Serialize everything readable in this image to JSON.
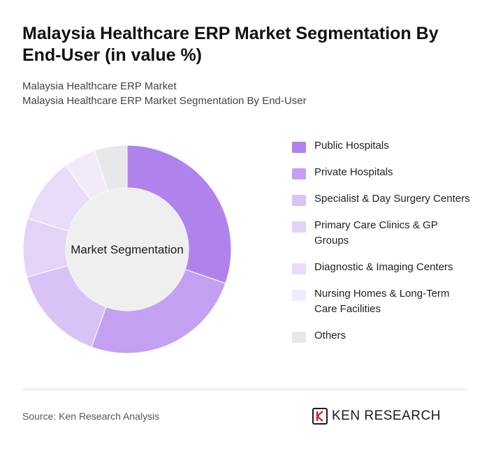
{
  "header": {
    "title": "Malaysia Healthcare ERP Market Segmentation By End-User (in value %)",
    "subtitle_line1": "Malaysia Healthcare ERP Market",
    "subtitle_line2": "Malaysia Healthcare ERP Market Segmentation By End-User"
  },
  "chart_data": {
    "type": "pie",
    "variant": "donut",
    "center_label": "Market Segmentation",
    "categories": [
      "Public Hospitals",
      "Private Hospitals",
      "Specialist & Day Surgery Centers",
      "Primary Care Clinics & GP Groups",
      "Diagnostic & Imaging Centers",
      "Nursing Homes & Long-Term Care Facilities",
      "Others"
    ],
    "values": [
      30,
      25,
      15,
      9,
      10,
      5,
      5
    ],
    "colors": [
      "#b083ec",
      "#c3a0f2",
      "#d8c3f6",
      "#e2d3f7",
      "#e8dcf8",
      "#f1eafb",
      "#e8e8e8"
    ],
    "legend_position": "right"
  },
  "footer": {
    "source": "Source: Ken Research Analysis",
    "brand_logo_icon": "ken-research-logo-icon",
    "brand_name": "KEN RESEARCH"
  }
}
